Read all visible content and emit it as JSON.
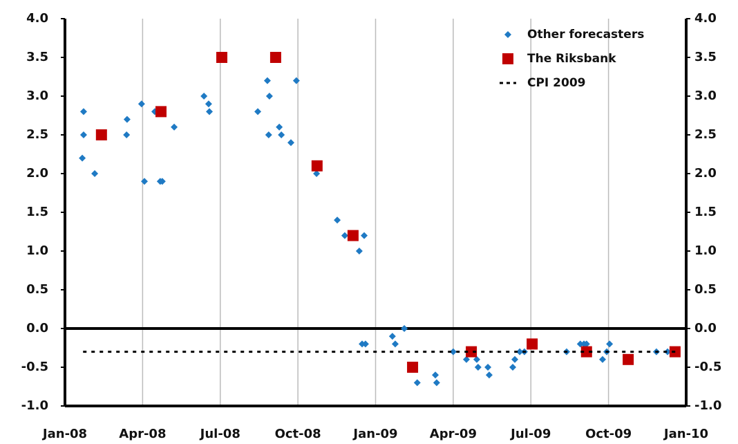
{
  "chart_data": {
    "type": "scatter",
    "xlim": [
      0,
      24
    ],
    "xticks": [
      {
        "value": 0,
        "label": "Jan-08"
      },
      {
        "value": 3,
        "label": "Apr-08"
      },
      {
        "value": 6,
        "label": "Jul-08"
      },
      {
        "value": 9,
        "label": "Oct-08"
      },
      {
        "value": 12,
        "label": "Jan-09"
      },
      {
        "value": 15,
        "label": "Apr-09"
      },
      {
        "value": 18,
        "label": "Jul-09"
      },
      {
        "value": 21,
        "label": "Oct-09"
      },
      {
        "value": 24,
        "label": "Jan-10"
      }
    ],
    "ylim": [
      -1,
      4
    ],
    "yticks": [
      {
        "value": 4,
        "label": "4.0"
      },
      {
        "value": 3.5,
        "label": "3.5"
      },
      {
        "value": 3,
        "label": "3.0"
      },
      {
        "value": 2.5,
        "label": "2.5"
      },
      {
        "value": 2,
        "label": "2.0"
      },
      {
        "value": 1.5,
        "label": "1.5"
      },
      {
        "value": 1,
        "label": "1.0"
      },
      {
        "value": 0.5,
        "label": "0.5"
      },
      {
        "value": 0,
        "label": "0.0"
      },
      {
        "value": -0.5,
        "label": "-0.5"
      },
      {
        "value": -1,
        "label": "-1.0"
      }
    ],
    "grid": true,
    "legend": "upper right",
    "series": [
      {
        "name": "Other forecasters",
        "color": "#1f7ac4",
        "marker": "diamond",
        "x": [
          0.67,
          0.72,
          0.72,
          1.15,
          2.38,
          2.4,
          2.96,
          3.07,
          3.47,
          3.68,
          3.76,
          4.22,
          5.37,
          5.55,
          5.58,
          7.45,
          7.82,
          7.87,
          7.9,
          8.28,
          8.36,
          8.73,
          8.94,
          9.72,
          10.52,
          10.81,
          11.19,
          11.37,
          11.48,
          11.56,
          11.61,
          12.65,
          12.76,
          13.11,
          13.61,
          14.31,
          14.36,
          15.0,
          15.51,
          15.7,
          15.91,
          15.96,
          16.34,
          16.39,
          17.3,
          17.38,
          17.57,
          17.75,
          19.38,
          19.91,
          20.05,
          20.15,
          20.77,
          20.93,
          21.04,
          22.85,
          23.28
        ],
        "values": [
          2.2,
          2.5,
          2.8,
          2.0,
          2.5,
          2.7,
          2.9,
          1.9,
          2.8,
          1.9,
          1.9,
          2.6,
          3.0,
          2.9,
          2.8,
          2.8,
          3.2,
          2.5,
          3.0,
          2.6,
          2.5,
          2.4,
          3.2,
          2.0,
          1.4,
          1.2,
          1.2,
          1.0,
          -0.2,
          1.2,
          -0.2,
          -0.1,
          -0.2,
          0.0,
          -0.7,
          -0.6,
          -0.7,
          -0.3,
          -0.4,
          -0.3,
          -0.4,
          -0.5,
          -0.5,
          -0.6,
          -0.5,
          -0.4,
          -0.3,
          -0.3,
          -0.3,
          -0.2,
          -0.2,
          -0.2,
          -0.4,
          -0.3,
          -0.2,
          -0.3,
          -0.3
        ]
      },
      {
        "name": "The Riksbank",
        "color": "#c00000",
        "marker": "square",
        "x": [
          1.41,
          3.71,
          6.06,
          8.14,
          9.74,
          11.13,
          13.43,
          15.7,
          18.05,
          20.15,
          21.76,
          23.57
        ],
        "values": [
          2.5,
          2.8,
          3.5,
          3.5,
          2.1,
          1.2,
          -0.5,
          -0.3,
          -0.2,
          -0.3,
          -0.4,
          -0.3
        ]
      },
      {
        "name": "CPI 2009",
        "color": "#000000",
        "marker": "dashed-line",
        "x": [
          0.7,
          23.6
        ],
        "values": [
          -0.3,
          -0.3
        ]
      }
    ]
  }
}
